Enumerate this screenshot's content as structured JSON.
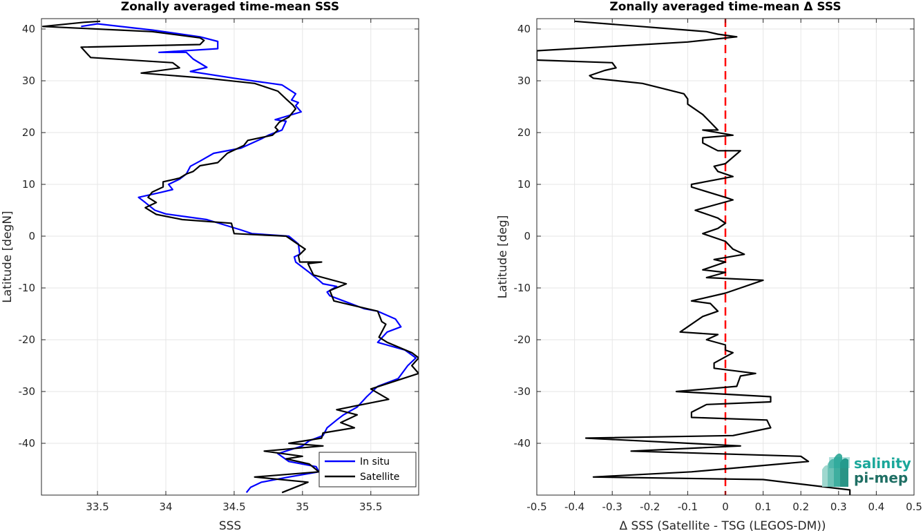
{
  "colors": {
    "in_situ": "#0000ff",
    "satellite": "#000000",
    "zero_line": "#ff0000",
    "grid": "#e6e6e6",
    "axis": "#262626",
    "logo_salinity": "#1aa79a",
    "logo_pimep": "#1f6f64"
  },
  "logo": {
    "line1": "salinity",
    "line2": "pi-mep"
  },
  "chart_data": [
    {
      "type": "line",
      "title": "Zonally averaged time-mean SSS",
      "xlabel": "SSS",
      "ylabel": "Latitude [degN]",
      "xlim": [
        33.09,
        35.85
      ],
      "ylim": [
        -50,
        42
      ],
      "xticks": [
        33.5,
        34,
        34.5,
        35,
        35.5
      ],
      "xtick_labels": [
        "33.5",
        "34",
        "34.5",
        "35",
        "35.5"
      ],
      "yticks": [
        40,
        30,
        20,
        10,
        0,
        -10,
        -20,
        -30,
        -40
      ],
      "ytick_labels": [
        "40",
        "30",
        "20",
        "10",
        "0",
        "-10",
        "-20",
        "-30",
        "-40"
      ],
      "grid": true,
      "legend": {
        "position": "bottom-right",
        "entries": [
          "In situ",
          "Satellite"
        ]
      },
      "series": [
        {
          "name": "In situ",
          "color_key": "in_situ",
          "points": [
            [
              33.38,
              40.5
            ],
            [
              33.5,
              41.0
            ],
            [
              33.9,
              39.8
            ],
            [
              34.25,
              38.5
            ],
            [
              34.38,
              37.6
            ],
            [
              34.38,
              36.2
            ],
            [
              33.95,
              35.5
            ],
            [
              34.15,
              35.5
            ],
            [
              34.2,
              34.2
            ],
            [
              34.3,
              32.6
            ],
            [
              34.18,
              31.8
            ],
            [
              34.5,
              30.5
            ],
            [
              34.85,
              29.2
            ],
            [
              34.95,
              27.5
            ],
            [
              34.92,
              26.3
            ],
            [
              34.97,
              25.8
            ],
            [
              34.95,
              25.2
            ],
            [
              34.99,
              24.0
            ],
            [
              34.8,
              22.5
            ],
            [
              34.88,
              22.2
            ],
            [
              34.85,
              20.5
            ],
            [
              34.75,
              19.5
            ],
            [
              34.7,
              18.8
            ],
            [
              34.55,
              17.0
            ],
            [
              34.35,
              16.0
            ],
            [
              34.25,
              14.5
            ],
            [
              34.18,
              13.5
            ],
            [
              34.15,
              12.0
            ],
            [
              34.1,
              11.0
            ],
            [
              34.02,
              10.0
            ],
            [
              34.05,
              9.0
            ],
            [
              33.97,
              8.5
            ],
            [
              33.8,
              7.5
            ],
            [
              33.85,
              6.5
            ],
            [
              33.92,
              5.0
            ],
            [
              34.0,
              4.3
            ],
            [
              34.3,
              3.2
            ],
            [
              34.45,
              2.0
            ],
            [
              34.55,
              1.2
            ],
            [
              34.63,
              0.5
            ],
            [
              34.9,
              0.0
            ],
            [
              34.97,
              -1.5
            ],
            [
              34.98,
              -3.5
            ],
            [
              34.94,
              -4.0
            ],
            [
              34.95,
              -5.0
            ],
            [
              35.05,
              -7.0
            ],
            [
              35.12,
              -8.5
            ],
            [
              35.15,
              -9.2
            ],
            [
              35.25,
              -9.7
            ],
            [
              35.18,
              -10.8
            ],
            [
              35.2,
              -11.5
            ],
            [
              35.45,
              -14.0
            ],
            [
              35.55,
              -14.5
            ],
            [
              35.68,
              -16.0
            ],
            [
              35.72,
              -17.5
            ],
            [
              35.62,
              -18.5
            ],
            [
              35.55,
              -20.5
            ],
            [
              35.75,
              -22.0
            ],
            [
              35.83,
              -23.5
            ],
            [
              35.77,
              -25.0
            ],
            [
              35.7,
              -27.5
            ],
            [
              35.55,
              -29.0
            ],
            [
              35.47,
              -31.0
            ],
            [
              35.4,
              -33.0
            ],
            [
              35.3,
              -34.5
            ],
            [
              35.25,
              -35.5
            ],
            [
              35.18,
              -37.0
            ],
            [
              35.15,
              -38.5
            ],
            [
              35.05,
              -39.5
            ],
            [
              35.0,
              -40.5
            ],
            [
              34.82,
              -42.0
            ],
            [
              34.9,
              -43.5
            ],
            [
              35.1,
              -44.5
            ],
            [
              35.12,
              -45.5
            ],
            [
              34.9,
              -46.5
            ],
            [
              34.7,
              -47.5
            ],
            [
              34.62,
              -48.5
            ],
            [
              34.59,
              -49.5
            ]
          ]
        },
        {
          "name": "Satellite",
          "color_key": "satellite",
          "points": [
            [
              33.52,
              41.5
            ],
            [
              33.4,
              41.3
            ],
            [
              33.1,
              40.5
            ],
            [
              33.9,
              39.5
            ],
            [
              34.25,
              38.3
            ],
            [
              34.28,
              37.8
            ],
            [
              34.25,
              37.0
            ],
            [
              33.38,
              36.5
            ],
            [
              33.45,
              34.5
            ],
            [
              34.05,
              33.5
            ],
            [
              34.1,
              32.5
            ],
            [
              33.82,
              31.5
            ],
            [
              34.3,
              30.5
            ],
            [
              34.65,
              29.5
            ],
            [
              34.82,
              28.0
            ],
            [
              34.88,
              26.5
            ],
            [
              34.93,
              25.3
            ],
            [
              34.95,
              24.6
            ],
            [
              34.9,
              23.0
            ],
            [
              34.83,
              22.0
            ],
            [
              34.8,
              21.0
            ],
            [
              34.82,
              20.5
            ],
            [
              34.78,
              19.5
            ],
            [
              34.6,
              18.5
            ],
            [
              34.57,
              17.5
            ],
            [
              34.45,
              16.0
            ],
            [
              34.38,
              14.2
            ],
            [
              34.25,
              13.6
            ],
            [
              34.2,
              12.5
            ],
            [
              34.15,
              12.0
            ],
            [
              34.1,
              11.2
            ],
            [
              33.98,
              10.5
            ],
            [
              33.98,
              9.5
            ],
            [
              33.9,
              8.5
            ],
            [
              33.87,
              7.5
            ],
            [
              33.93,
              6.5
            ],
            [
              33.85,
              5.5
            ],
            [
              33.93,
              4.2
            ],
            [
              34.12,
              3.2
            ],
            [
              34.48,
              2.5
            ],
            [
              34.5,
              0.5
            ],
            [
              34.88,
              0.0
            ],
            [
              35.02,
              -2.5
            ],
            [
              34.97,
              -3.8
            ],
            [
              34.98,
              -5.0
            ],
            [
              35.14,
              -5.0
            ],
            [
              35.04,
              -5.3
            ],
            [
              35.08,
              -7.5
            ],
            [
              35.32,
              -9.2
            ],
            [
              35.2,
              -10.5
            ],
            [
              35.23,
              -12.5
            ],
            [
              35.55,
              -14.5
            ],
            [
              35.58,
              -16.5
            ],
            [
              35.61,
              -17.0
            ],
            [
              35.56,
              -19.5
            ],
            [
              35.62,
              -20.5
            ],
            [
              35.8,
              -22.5
            ],
            [
              35.85,
              -23.5
            ],
            [
              35.8,
              -25.0
            ],
            [
              35.85,
              -26.5
            ],
            [
              35.5,
              -29.5
            ],
            [
              35.63,
              -31.5
            ],
            [
              35.25,
              -33.5
            ],
            [
              35.4,
              -34.5
            ],
            [
              35.28,
              -36.0
            ],
            [
              35.38,
              -37.0
            ],
            [
              35.15,
              -38.0
            ],
            [
              35.14,
              -39.0
            ],
            [
              34.9,
              -40.0
            ],
            [
              35.15,
              -40.5
            ],
            [
              34.72,
              -41.5
            ],
            [
              35.0,
              -42.5
            ],
            [
              34.88,
              -43.0
            ],
            [
              35.05,
              -44.0
            ],
            [
              35.12,
              -45.5
            ],
            [
              34.65,
              -46.5
            ],
            [
              35.04,
              -47.5
            ],
            [
              34.85,
              -49.5
            ]
          ]
        }
      ]
    },
    {
      "type": "line",
      "title": "Zonally averaged time-mean Δ SSS",
      "xlabel": "Δ SSS (Satellite - TSG (LEGOS-DM))",
      "ylabel": "Latitude [deg]",
      "xlim": [
        -0.5,
        0.5
      ],
      "ylim": [
        -50,
        42
      ],
      "xticks": [
        -0.5,
        -0.4,
        -0.3,
        -0.2,
        -0.1,
        0,
        0.1,
        0.2,
        0.3,
        0.4,
        0.5
      ],
      "xtick_labels": [
        "-0.5",
        "-0.4",
        "-0.3",
        "-0.2",
        "-0.1",
        "0",
        "0.1",
        "0.2",
        "0.3",
        "0.4",
        "0.5"
      ],
      "yticks": [
        40,
        30,
        20,
        10,
        0,
        -10,
        -20,
        -30,
        -40
      ],
      "ytick_labels": [
        "40",
        "30",
        "20",
        "10",
        "0",
        "-10",
        "-20",
        "-30",
        "-40"
      ],
      "grid": true,
      "reference_line": {
        "x": 0,
        "style": "dashed",
        "color_key": "zero_line"
      },
      "series": [
        {
          "color_key": "satellite",
          "points": [
            [
              -0.4,
              41.5
            ],
            [
              -0.05,
              39.5
            ],
            [
              -0.02,
              39.0
            ],
            [
              0.03,
              38.5
            ],
            [
              -0.1,
              37.5
            ],
            [
              -0.5,
              35.8
            ],
            [
              -0.5,
              34.0
            ],
            [
              -0.3,
              33.5
            ],
            [
              -0.29,
              32.5
            ],
            [
              -0.32,
              32.0
            ],
            [
              -0.36,
              31.0
            ],
            [
              -0.35,
              30.5
            ],
            [
              -0.22,
              29.5
            ],
            [
              -0.11,
              27.5
            ],
            [
              -0.1,
              26.5
            ],
            [
              -0.1,
              25.5
            ],
            [
              -0.08,
              24.5
            ],
            [
              -0.06,
              23.5
            ],
            [
              -0.04,
              22.0
            ],
            [
              -0.02,
              20.5
            ],
            [
              -0.06,
              20.5
            ],
            [
              0.02,
              19.5
            ],
            [
              -0.06,
              19.0
            ],
            [
              -0.06,
              18.0
            ],
            [
              -0.02,
              16.5
            ],
            [
              0.04,
              16.5
            ],
            [
              0.0,
              14.0
            ],
            [
              -0.03,
              13.5
            ],
            [
              -0.02,
              12.5
            ],
            [
              0.02,
              11.5
            ],
            [
              -0.09,
              10.0
            ],
            [
              -0.09,
              9.5
            ],
            [
              0.0,
              7.5
            ],
            [
              0.02,
              7.0
            ],
            [
              -0.08,
              5.0
            ],
            [
              -0.04,
              4.0
            ],
            [
              -0.02,
              3.5
            ],
            [
              0.0,
              2.5
            ],
            [
              -0.02,
              1.5
            ],
            [
              -0.06,
              0.5
            ],
            [
              0.0,
              -1.0
            ],
            [
              0.02,
              -2.5
            ],
            [
              0.05,
              -3.5
            ],
            [
              -0.03,
              -4.5
            ],
            [
              0.0,
              -5.0
            ],
            [
              -0.06,
              -6.5
            ],
            [
              0.0,
              -7.0
            ],
            [
              -0.05,
              -8.0
            ],
            [
              0.1,
              -8.5
            ],
            [
              0.0,
              -11.0
            ],
            [
              -0.09,
              -12.5
            ],
            [
              -0.04,
              -13.0
            ],
            [
              -0.02,
              -14.5
            ],
            [
              -0.06,
              -15.5
            ],
            [
              -0.12,
              -18.5
            ],
            [
              -0.02,
              -19.0
            ],
            [
              -0.05,
              -20.0
            ],
            [
              0.0,
              -21.0
            ],
            [
              0.0,
              -22.0
            ],
            [
              0.02,
              -22.5
            ],
            [
              -0.03,
              -24.5
            ],
            [
              -0.03,
              -25.5
            ],
            [
              0.08,
              -26.5
            ],
            [
              0.04,
              -27.0
            ],
            [
              0.03,
              -29.0
            ],
            [
              -0.13,
              -30.0
            ],
            [
              0.12,
              -31.0
            ],
            [
              0.12,
              -32.0
            ],
            [
              -0.05,
              -32.5
            ],
            [
              -0.09,
              -34.0
            ],
            [
              -0.09,
              -35.0
            ],
            [
              0.11,
              -35.5
            ],
            [
              0.12,
              -37.0
            ],
            [
              0.02,
              -38.5
            ],
            [
              -0.37,
              -39.0
            ],
            [
              0.04,
              -40.5
            ],
            [
              -0.25,
              -41.5
            ],
            [
              0.2,
              -42.5
            ],
            [
              0.22,
              -43.5
            ],
            [
              -0.09,
              -45.5
            ],
            [
              -0.35,
              -46.5
            ],
            [
              0.1,
              -47.0
            ],
            [
              0.33,
              -49.0
            ],
            [
              0.33,
              -50.0
            ]
          ]
        }
      ]
    }
  ]
}
